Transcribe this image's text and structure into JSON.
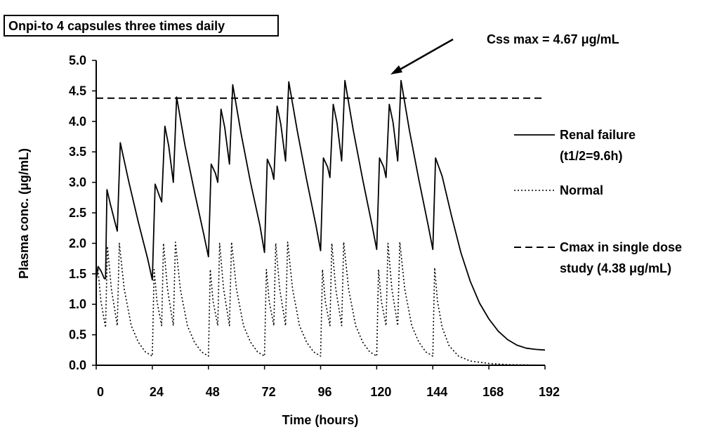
{
  "chart_data": {
    "type": "line",
    "title": "Onpi-to 4 capsules three times daily",
    "xlabel": "Time (hours)",
    "ylabel": "Plasma conc. (μg/mL)",
    "xlim": [
      0,
      192
    ],
    "ylim": [
      0,
      5.0
    ],
    "x_ticks": [
      0,
      24,
      48,
      72,
      96,
      120,
      144,
      168,
      192
    ],
    "y_ticks": [
      0.0,
      0.5,
      1.0,
      1.5,
      2.0,
      2.5,
      3.0,
      3.5,
      4.0,
      4.5,
      5.0
    ],
    "x_tick_labels": [
      "0",
      "24",
      "48",
      "72",
      "96",
      "120",
      "144",
      "168",
      "192"
    ],
    "y_tick_labels": [
      "0.0",
      "0.5",
      "1.0",
      "1.5",
      "2.0",
      "2.5",
      "3.0",
      "3.5",
      "4.0",
      "4.5",
      "5.0"
    ],
    "grid": false,
    "legend_position": "right",
    "annotation": {
      "text": "Css max = 4.67 μg/mL",
      "points_to": {
        "x": 129,
        "y": 4.67
      }
    },
    "series": [
      {
        "name": "Renal failure (t1/2=9.6h)",
        "legend_line1": "Renal failure",
        "legend_line2": "(t1/2=9.6h)",
        "style": "solid",
        "points": [
          [
            0,
            1.4
          ],
          [
            0.8,
            1.62
          ],
          [
            2,
            1.55
          ],
          [
            3.5,
            1.42
          ],
          [
            4,
            1.42
          ],
          [
            4.6,
            2.88
          ],
          [
            6,
            2.65
          ],
          [
            8,
            2.35
          ],
          [
            9,
            2.2
          ],
          [
            9,
            2.2
          ],
          [
            10.3,
            3.65
          ],
          [
            14,
            3.0
          ],
          [
            18,
            2.35
          ],
          [
            22,
            1.75
          ],
          [
            24,
            1.4
          ],
          [
            24,
            1.4
          ],
          [
            25.2,
            2.97
          ],
          [
            27,
            2.78
          ],
          [
            28,
            2.68
          ],
          [
            28,
            2.68
          ],
          [
            29.4,
            3.92
          ],
          [
            31,
            3.6
          ],
          [
            33,
            3.0
          ],
          [
            33,
            3.0
          ],
          [
            34.4,
            4.4
          ],
          [
            38,
            3.6
          ],
          [
            42,
            2.85
          ],
          [
            46,
            2.15
          ],
          [
            48,
            1.78
          ],
          [
            48,
            1.78
          ],
          [
            49.2,
            3.3
          ],
          [
            51,
            3.15
          ],
          [
            52,
            3.0
          ],
          [
            52,
            3.0
          ],
          [
            53.4,
            4.2
          ],
          [
            55,
            3.9
          ],
          [
            57,
            3.3
          ],
          [
            57,
            3.3
          ],
          [
            58.4,
            4.6
          ],
          [
            62,
            3.8
          ],
          [
            66,
            3.0
          ],
          [
            70,
            2.3
          ],
          [
            72,
            1.85
          ],
          [
            72,
            1.85
          ],
          [
            73.2,
            3.38
          ],
          [
            75,
            3.22
          ],
          [
            76,
            3.05
          ],
          [
            76,
            3.05
          ],
          [
            77.4,
            4.25
          ],
          [
            79,
            3.95
          ],
          [
            81,
            3.35
          ],
          [
            81,
            3.35
          ],
          [
            82.4,
            4.65
          ],
          [
            86,
            3.85
          ],
          [
            90,
            3.05
          ],
          [
            94,
            2.3
          ],
          [
            96,
            1.88
          ],
          [
            96,
            1.88
          ],
          [
            97.2,
            3.4
          ],
          [
            99,
            3.25
          ],
          [
            100,
            3.08
          ],
          [
            100,
            3.08
          ],
          [
            101.4,
            4.28
          ],
          [
            103,
            3.98
          ],
          [
            105,
            3.35
          ],
          [
            105,
            3.35
          ],
          [
            106.4,
            4.67
          ],
          [
            110,
            3.85
          ],
          [
            114,
            3.05
          ],
          [
            118,
            2.3
          ],
          [
            120,
            1.9
          ],
          [
            120,
            1.9
          ],
          [
            121.2,
            3.4
          ],
          [
            123,
            3.25
          ],
          [
            124,
            3.08
          ],
          [
            124,
            3.08
          ],
          [
            125.4,
            4.28
          ],
          [
            127,
            3.98
          ],
          [
            129,
            3.35
          ],
          [
            129,
            3.35
          ],
          [
            130.4,
            4.67
          ],
          [
            134,
            3.85
          ],
          [
            138,
            3.05
          ],
          [
            142,
            2.3
          ],
          [
            144,
            1.9
          ],
          [
            144,
            1.9
          ],
          [
            145.2,
            3.4
          ],
          [
            148,
            3.1
          ],
          [
            152,
            2.45
          ],
          [
            156,
            1.85
          ],
          [
            160,
            1.38
          ],
          [
            164,
            1.02
          ],
          [
            168,
            0.76
          ],
          [
            172,
            0.56
          ],
          [
            176,
            0.42
          ],
          [
            180,
            0.33
          ],
          [
            184,
            0.28
          ],
          [
            188,
            0.26
          ],
          [
            192,
            0.25
          ]
        ]
      },
      {
        "name": "Normal",
        "legend_line1": "Normal",
        "style": "dotted",
        "points": [
          [
            0,
            1.4
          ],
          [
            0.7,
            1.6
          ],
          [
            2,
            1.05
          ],
          [
            4,
            0.62
          ],
          [
            4,
            0.62
          ],
          [
            4.8,
            1.95
          ],
          [
            6.5,
            1.25
          ],
          [
            9,
            0.65
          ],
          [
            9,
            0.65
          ],
          [
            9.9,
            2.0
          ],
          [
            12,
            1.25
          ],
          [
            15,
            0.65
          ],
          [
            18,
            0.38
          ],
          [
            21,
            0.22
          ],
          [
            24,
            0.15
          ],
          [
            24,
            0.15
          ],
          [
            24.8,
            1.57
          ],
          [
            26,
            1.05
          ],
          [
            28,
            0.65
          ],
          [
            28,
            0.65
          ],
          [
            28.8,
            2.0
          ],
          [
            30.5,
            1.25
          ],
          [
            33,
            0.65
          ],
          [
            33,
            0.65
          ],
          [
            33.9,
            2.02
          ],
          [
            36,
            1.25
          ],
          [
            39,
            0.65
          ],
          [
            42,
            0.38
          ],
          [
            45,
            0.22
          ],
          [
            48,
            0.15
          ],
          [
            48,
            0.15
          ],
          [
            48.8,
            1.57
          ],
          [
            50,
            1.05
          ],
          [
            52,
            0.65
          ],
          [
            52,
            0.65
          ],
          [
            52.8,
            2.0
          ],
          [
            54.5,
            1.25
          ],
          [
            57,
            0.65
          ],
          [
            57,
            0.65
          ],
          [
            57.9,
            2.02
          ],
          [
            60,
            1.25
          ],
          [
            63,
            0.65
          ],
          [
            66,
            0.38
          ],
          [
            69,
            0.22
          ],
          [
            72,
            0.15
          ],
          [
            72,
            0.15
          ],
          [
            72.8,
            1.57
          ],
          [
            74,
            1.05
          ],
          [
            76,
            0.65
          ],
          [
            76,
            0.65
          ],
          [
            76.8,
            2.0
          ],
          [
            78.5,
            1.25
          ],
          [
            81,
            0.65
          ],
          [
            81,
            0.65
          ],
          [
            81.9,
            2.02
          ],
          [
            84,
            1.25
          ],
          [
            87,
            0.65
          ],
          [
            90,
            0.38
          ],
          [
            93,
            0.22
          ],
          [
            96,
            0.15
          ],
          [
            96,
            0.15
          ],
          [
            96.8,
            1.57
          ],
          [
            98,
            1.05
          ],
          [
            100,
            0.65
          ],
          [
            100,
            0.65
          ],
          [
            100.8,
            2.0
          ],
          [
            102.5,
            1.25
          ],
          [
            105,
            0.65
          ],
          [
            105,
            0.65
          ],
          [
            105.9,
            2.02
          ],
          [
            108,
            1.25
          ],
          [
            111,
            0.65
          ],
          [
            114,
            0.38
          ],
          [
            117,
            0.22
          ],
          [
            120,
            0.15
          ],
          [
            120,
            0.15
          ],
          [
            120.8,
            1.57
          ],
          [
            122,
            1.05
          ],
          [
            124,
            0.65
          ],
          [
            124,
            0.65
          ],
          [
            124.8,
            2.0
          ],
          [
            126.5,
            1.25
          ],
          [
            129,
            0.65
          ],
          [
            129,
            0.65
          ],
          [
            129.9,
            2.02
          ],
          [
            132,
            1.25
          ],
          [
            135,
            0.65
          ],
          [
            138,
            0.38
          ],
          [
            141,
            0.22
          ],
          [
            144,
            0.15
          ],
          [
            144,
            0.15
          ],
          [
            144.8,
            1.6
          ],
          [
            146,
            1.05
          ],
          [
            148,
            0.62
          ],
          [
            151,
            0.32
          ],
          [
            155,
            0.15
          ],
          [
            160,
            0.07
          ],
          [
            168,
            0.03
          ],
          [
            176,
            0.01
          ],
          [
            192,
            0.0
          ]
        ]
      },
      {
        "name": "Cmax in single dose study (4.38 μg/mL)",
        "legend_line1": "Cmax in single dose",
        "legend_line2": "study (4.38 μg/mL)",
        "style": "dashed",
        "points": [
          [
            0,
            4.38
          ],
          [
            192,
            4.38
          ]
        ]
      }
    ]
  }
}
